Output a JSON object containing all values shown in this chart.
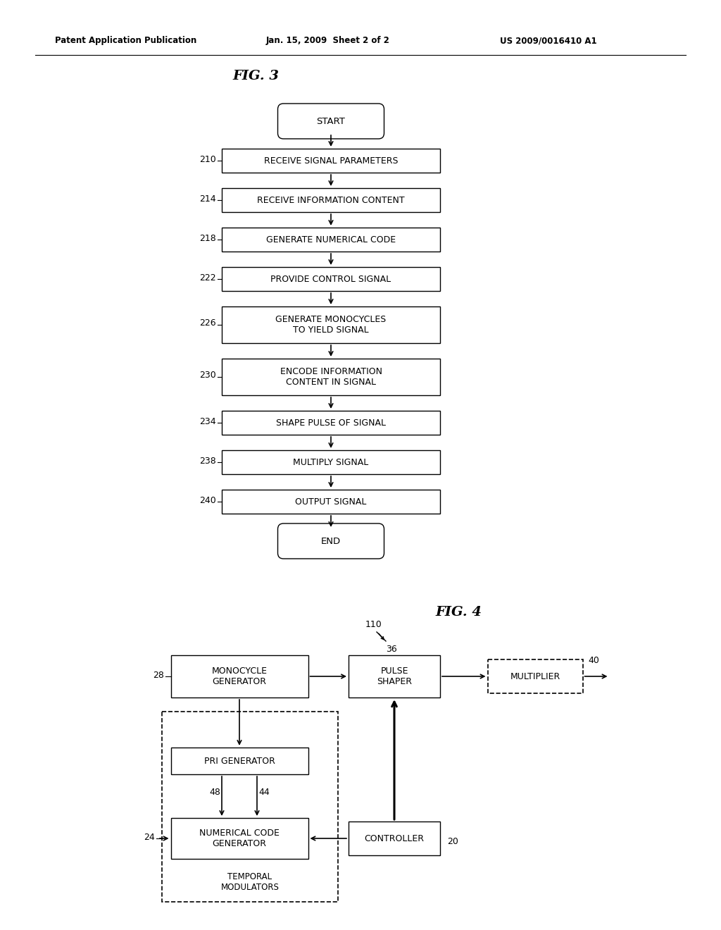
{
  "bg_color": "#ffffff",
  "header_left": "Patent Application Publication",
  "header_mid": "Jan. 15, 2009  Sheet 2 of 2",
  "header_right": "US 2009/0016410 A1",
  "fig3_title": "FIG. 3",
  "fig4_title": "FIG. 4",
  "fig3_steps": [
    {
      "label": "START",
      "type": "terminal",
      "ref": ""
    },
    {
      "label": "RECEIVE SIGNAL PARAMETERS",
      "type": "rect",
      "ref": "210"
    },
    {
      "label": "RECEIVE INFORMATION CONTENT",
      "type": "rect",
      "ref": "214"
    },
    {
      "label": "GENERATE NUMERICAL CODE",
      "type": "rect",
      "ref": "218"
    },
    {
      "label": "PROVIDE CONTROL SIGNAL",
      "type": "rect",
      "ref": "222"
    },
    {
      "label": "GENERATE MONOCYCLES\nTO YIELD SIGNAL",
      "type": "rect2",
      "ref": "226"
    },
    {
      "label": "ENCODE INFORMATION\nCONTENT IN SIGNAL",
      "type": "rect2",
      "ref": "230"
    },
    {
      "label": "SHAPE PULSE OF SIGNAL",
      "type": "rect",
      "ref": "234"
    },
    {
      "label": "MULTIPLY SIGNAL",
      "type": "rect",
      "ref": "238"
    },
    {
      "label": "OUTPUT SIGNAL",
      "type": "rect",
      "ref": "240"
    },
    {
      "label": "END",
      "type": "terminal",
      "ref": ""
    }
  ]
}
